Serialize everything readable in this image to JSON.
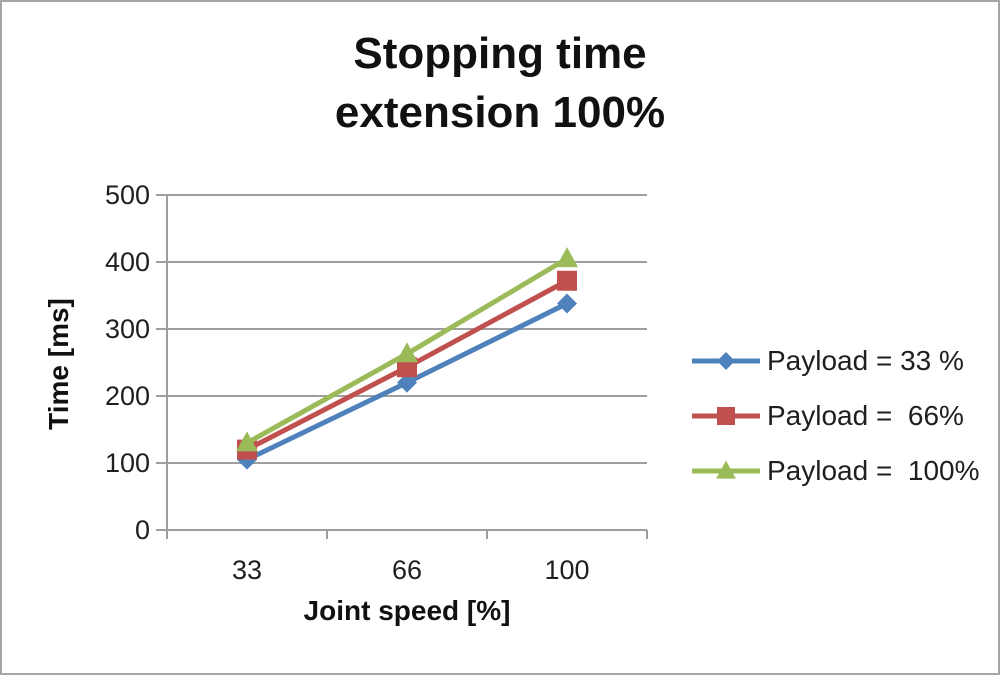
{
  "chart_data": {
    "type": "line",
    "title": "Stopping time",
    "subtitle": "extension 100%",
    "xlabel": "Joint speed [%]",
    "ylabel": "Time [ms]",
    "x_categories": [
      "33",
      "66",
      "100"
    ],
    "ylim": [
      0,
      500
    ],
    "y_ticks": [
      0,
      100,
      200,
      300,
      400,
      500
    ],
    "grid": true,
    "legend_position": "right",
    "series": [
      {
        "name": "Payload = 33 %",
        "marker": "diamond",
        "color": "#4f81bd",
        "values": [
          105,
          220,
          338
        ]
      },
      {
        "name": "Payload =  66%",
        "marker": "square",
        "color": "#c0504d",
        "values": [
          120,
          243,
          372
        ]
      },
      {
        "name": "Payload =  100%",
        "marker": "triangle",
        "color": "#9bbb59",
        "values": [
          130,
          263,
          405
        ]
      }
    ],
    "colors": {
      "gridline": "#9e9e9e",
      "axis": "#9e9e9e",
      "text": "#1f1f1f",
      "frame_border": "#a6a6a6",
      "background": "#ffffff"
    }
  }
}
